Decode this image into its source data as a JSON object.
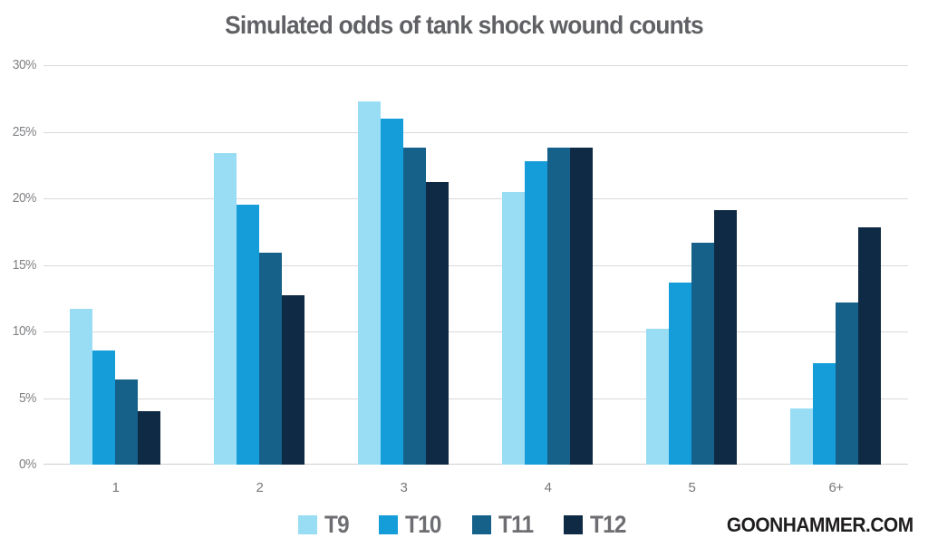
{
  "footer": {
    "brand": "GOONHAMMER.COM"
  },
  "colors": {
    "gridline": "#d9d9d9",
    "title_text": "#606164",
    "axis_text": "#808285",
    "legend_text": "#6d6e71",
    "brand_text": "#1f1d1e"
  },
  "chart_data": {
    "type": "bar",
    "title": "Simulated odds of tank shock wound counts",
    "categories": [
      "1",
      "2",
      "3",
      "4",
      "5",
      "6+"
    ],
    "series": [
      {
        "name": "T9",
        "color": "#99ddf5",
        "values": [
          11.7,
          23.4,
          27.3,
          20.5,
          10.2,
          4.2
        ]
      },
      {
        "name": "T10",
        "color": "#149dd9",
        "values": [
          8.6,
          19.5,
          26.0,
          22.8,
          13.7,
          7.6
        ]
      },
      {
        "name": "T11",
        "color": "#15618a",
        "values": [
          6.4,
          15.9,
          23.8,
          23.8,
          16.7,
          12.2
        ]
      },
      {
        "name": "T12",
        "color": "#0f2a44",
        "values": [
          4.0,
          12.7,
          21.2,
          23.8,
          19.1,
          17.8
        ]
      }
    ],
    "xlabel": "",
    "ylabel": "",
    "ylim": [
      0,
      30
    ],
    "ytick_step": 5,
    "ytick_labels": [
      "0%",
      "5%",
      "10%",
      "15%",
      "20%",
      "25%",
      "30%"
    ],
    "grid": true,
    "legend_position": "bottom"
  }
}
